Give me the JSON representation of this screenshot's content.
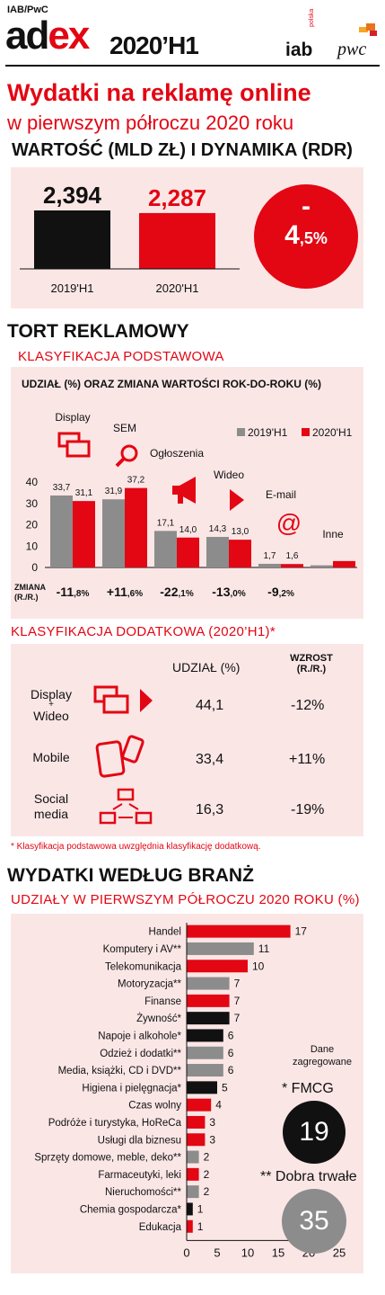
{
  "header": {
    "kicker": "IAB/PwC",
    "logo_ad": "ad",
    "logo_ex": "ex",
    "edition": "2020’H1",
    "iab": "iab",
    "iab_sub": "polska",
    "pwc": "pwc"
  },
  "title": {
    "line1": "Wydatki na reklamę online",
    "line2": "w pierwszym półroczu 2020 roku"
  },
  "value_section": {
    "heading": "WARTOŚĆ (MLD ZŁ) I DYNAMIKA (RDR)",
    "change_sign": "-",
    "change_int": "4",
    "change_dec": ",5%"
  },
  "pie_section": {
    "heading": "TORT REKLAMOWY",
    "sub_basic": "KLASYFIKACJA PODSTAWOWA",
    "chart_title": "UDZIAŁ (%) ORAZ ZMIANA WARTOŚCI ROK-DO-ROKU (%)",
    "change_label_1": "ZMIANA",
    "change_label_2": "(R./R.)"
  },
  "extra_section": {
    "heading": "KLASYFIKACJA DODATKOWA (2020’H1)*",
    "col_share": "UDZIAŁ (%)",
    "col_growth_1": "WZROST",
    "col_growth_2": "(R./R.)",
    "rows": [
      {
        "label_1": "Display",
        "label_plus": "+",
        "label_2": "Wideo",
        "share": "44,1",
        "growth": "-12%"
      },
      {
        "label_1": "Mobile",
        "share": "33,4",
        "growth": "+11%"
      },
      {
        "label_1": "Social",
        "label_2": "media",
        "share": "16,3",
        "growth": "-19%"
      }
    ],
    "footnote": "* Klasyfikacja podstawowa uwzględnia klasyfikację dodatkową."
  },
  "industry_section": {
    "heading": "WYDATKI WEDŁUG BRANŻ",
    "sub": "UDZIAŁY W PIERWSZYM PÓŁROCZU 2020 ROKU (%)",
    "agg_title_1": "Dane",
    "agg_title_2": "zagregowane",
    "fmcg_label": "* FMCG",
    "fmcg_value": "19",
    "durable_label": "** Dobra trwałe",
    "durable_value": "35"
  },
  "colors": {
    "accent": "#e30613",
    "black": "#111111",
    "grey": "#8c8c8c",
    "panel": "#fbe6e6"
  },
  "chart_data": [
    {
      "type": "bar",
      "categories": [
        "2019'H1",
        "2020'H1"
      ],
      "values": [
        2.394,
        2.287
      ],
      "value_labels": [
        "2,394",
        "2,287"
      ]
    },
    {
      "type": "bar",
      "categories": [
        "Display",
        "SEM",
        "Ogłoszenia",
        "Wideo",
        "E-mail",
        "Inne"
      ],
      "series": [
        {
          "name": "2019'H1",
          "values": [
            33.7,
            31.9,
            17.1,
            14.3,
            1.7,
            1.0
          ]
        },
        {
          "name": "2020'H1",
          "values": [
            31.1,
            37.2,
            14.0,
            13.0,
            1.6,
            3.0
          ]
        }
      ],
      "value_labels": [
        [
          "33,7",
          "31,1"
        ],
        [
          "31,9",
          "37,2"
        ],
        [
          "17,1",
          "14,0"
        ],
        [
          "14,3",
          "13,0"
        ],
        [
          "1,7",
          "1,6"
        ],
        [
          "",
          ""
        ]
      ],
      "change_int": [
        "-11",
        "+11",
        "-22",
        "-13",
        "-9"
      ],
      "change_dec": [
        ",8%",
        ",6%",
        ",1%",
        ",0%",
        ",2%"
      ],
      "yticks": [
        0,
        10,
        20,
        30,
        40
      ],
      "ylim": [
        0,
        40
      ],
      "legend": "top-right"
    },
    {
      "type": "bar",
      "orientation": "horizontal",
      "categories": [
        "Handel",
        "Komputery i AV**",
        "Telekomunikacja",
        "Motoryzacja**",
        "Finanse",
        "Żywność*",
        "Napoje i alkohole*",
        "Odzież i dodatki**",
        "Media, książki, CD i DVD**",
        "Higiena i pielęgnacja*",
        "Czas wolny",
        "Podróże i turystyka, HoReCa",
        "Usługi dla biznesu",
        "Sprzęty domowe, meble, deko**",
        "Farmaceutyki, leki",
        "Nieruchomości**",
        "Chemia gospodarcza*",
        "Edukacja"
      ],
      "values": [
        17,
        11,
        10,
        7,
        7,
        7,
        6,
        6,
        6,
        5,
        4,
        3,
        3,
        2,
        2,
        2,
        1,
        1
      ],
      "value_labels": [
        "17",
        "11",
        "10",
        "7",
        "7",
        "7",
        "6",
        "6",
        "6",
        "5",
        "4",
        "3",
        "3",
        "2",
        "2",
        "2",
        "1",
        "1"
      ],
      "bar_colors": [
        "red",
        "grey",
        "red",
        "grey",
        "red",
        "black",
        "black",
        "grey",
        "grey",
        "black",
        "red",
        "red",
        "red",
        "grey",
        "red",
        "grey",
        "black",
        "red"
      ],
      "xticks": [
        0,
        5,
        10,
        15,
        20,
        25
      ],
      "xlim": [
        0,
        25
      ]
    }
  ]
}
